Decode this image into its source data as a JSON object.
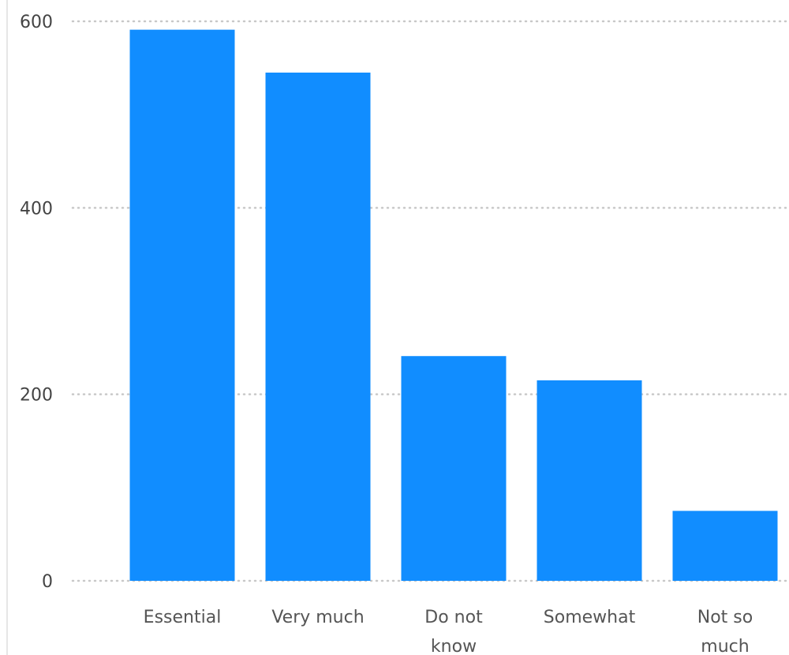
{
  "chart_data": {
    "type": "bar",
    "title": "",
    "xlabel": "",
    "ylabel": "",
    "categories": [
      "Essential",
      "Very much",
      "Do not know",
      "Somewhat",
      "Not so much"
    ],
    "category_lines": [
      [
        "Essential"
      ],
      [
        "Very much"
      ],
      [
        "Do not",
        "know"
      ],
      [
        "Somewhat"
      ],
      [
        "Not so",
        "much"
      ]
    ],
    "values": [
      591,
      545,
      241,
      215,
      75
    ],
    "ylim": [
      0,
      600
    ],
    "yticks": [
      0,
      200,
      400,
      600
    ],
    "ytick_labels": [
      "0",
      "200",
      "400",
      "600"
    ],
    "grid": true,
    "legend": "none",
    "bar_color": "#118dff"
  }
}
